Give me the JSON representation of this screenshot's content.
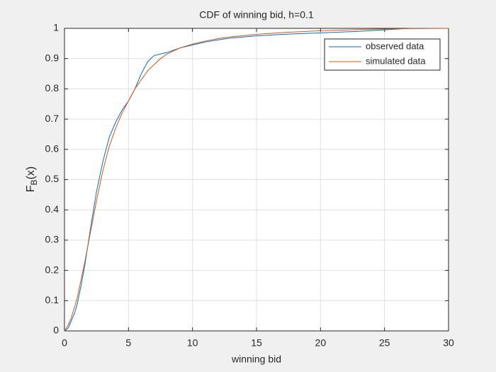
{
  "chart_data": {
    "type": "line",
    "title": "CDF of winning bid, h=0.1",
    "xlabel": "winning bid",
    "ylabel": [
      "F",
      "B",
      "(x)"
    ],
    "x": [
      0,
      0.3,
      0.5,
      0.8,
      1.0,
      1.3,
      1.6,
      2.0,
      2.5,
      3.0,
      3.5,
      4.0,
      4.5,
      5.0,
      5.5,
      6.0,
      6.5,
      7.0,
      7.5,
      8,
      9,
      10,
      11,
      12,
      13,
      15,
      17,
      20,
      23,
      25,
      27,
      30
    ],
    "series": [
      {
        "name": "observed data",
        "color": "#0072bd",
        "values": [
          0,
          0.01,
          0.03,
          0.06,
          0.09,
          0.15,
          0.22,
          0.33,
          0.46,
          0.56,
          0.64,
          0.69,
          0.73,
          0.76,
          0.8,
          0.85,
          0.89,
          0.91,
          0.915,
          0.92,
          0.935,
          0.945,
          0.955,
          0.962,
          0.968,
          0.975,
          0.98,
          0.985,
          0.99,
          0.995,
          1,
          1
        ]
      },
      {
        "name": "simulated data",
        "color": "#d95319",
        "values": [
          0,
          0.02,
          0.04,
          0.08,
          0.11,
          0.17,
          0.23,
          0.32,
          0.43,
          0.53,
          0.61,
          0.67,
          0.72,
          0.76,
          0.8,
          0.83,
          0.86,
          0.88,
          0.9,
          0.915,
          0.935,
          0.948,
          0.958,
          0.966,
          0.972,
          0.98,
          0.986,
          0.992,
          0.996,
          0.998,
          0.999,
          1
        ]
      }
    ],
    "xlim": [
      0,
      30
    ],
    "xticks": [
      0,
      5,
      10,
      15,
      20,
      25,
      30
    ],
    "ylim": [
      0,
      1
    ],
    "yticks": [
      0,
      0.1,
      0.2,
      0.3,
      0.4,
      0.5,
      0.6,
      0.7,
      0.8,
      0.9,
      1
    ],
    "grid": true,
    "legend": "top-right"
  }
}
